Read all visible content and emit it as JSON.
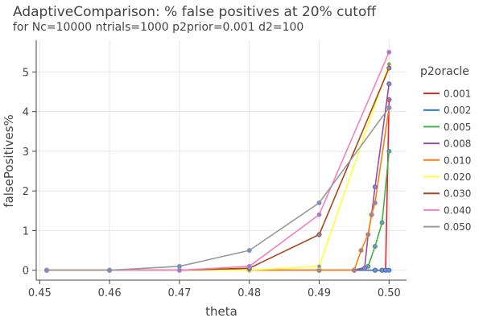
{
  "chart_data": {
    "type": "line",
    "title": "AdaptiveComparison: % false positives at 20% cutoff",
    "subtitle": "for Nc=10000 ntrials=1000 p2prior=0.001 d2=100",
    "xlabel": "theta",
    "ylabel": "falsePositives%",
    "xlim": [
      0.4495,
      0.5025
    ],
    "ylim": [
      -0.25,
      5.8
    ],
    "x_ticks": [
      0.45,
      0.46,
      0.47,
      0.48,
      0.49,
      0.5
    ],
    "x_tick_labels": [
      "0.45",
      "0.46",
      "0.47",
      "0.48",
      "0.49",
      "0.50"
    ],
    "y_ticks": [
      0,
      1,
      2,
      3,
      4,
      5
    ],
    "y_tick_labels": [
      "0",
      "1",
      "2",
      "3",
      "4",
      "5"
    ],
    "grid": true,
    "legend_title": "p2oracle",
    "legend_position": "right",
    "marker_color": "#6f8fd9",
    "series": [
      {
        "name": "0.001",
        "color": "#e3262b",
        "x": [
          0.451,
          0.46,
          0.47,
          0.48,
          0.49,
          0.495,
          0.498,
          0.499,
          0.4995,
          0.5
        ],
        "y": [
          0,
          0,
          0,
          0,
          0,
          0,
          0,
          0,
          0,
          4.3
        ]
      },
      {
        "name": "0.002",
        "color": "#2b74b0",
        "x": [
          0.451,
          0.46,
          0.47,
          0.48,
          0.49,
          0.495,
          0.498,
          0.499,
          0.4995,
          0.5
        ],
        "y": [
          0,
          0,
          0,
          0,
          0,
          0,
          0,
          0,
          0,
          0
        ]
      },
      {
        "name": "0.005",
        "color": "#45ad45",
        "x": [
          0.451,
          0.46,
          0.47,
          0.48,
          0.49,
          0.495,
          0.497,
          0.498,
          0.499,
          0.5
        ],
        "y": [
          0,
          0,
          0,
          0,
          0,
          0,
          0.1,
          0.6,
          1.2,
          3.0
        ]
      },
      {
        "name": "0.008",
        "color": "#984ea3",
        "x": [
          0.451,
          0.46,
          0.47,
          0.48,
          0.49,
          0.495,
          0.4965,
          0.497,
          0.4975,
          0.498,
          0.5
        ],
        "y": [
          0,
          0,
          0,
          0,
          0,
          0,
          0.05,
          0.9,
          1.4,
          2.1,
          4.7
        ]
      },
      {
        "name": "0.010",
        "color": "#ff7f0e",
        "x": [
          0.451,
          0.46,
          0.47,
          0.48,
          0.49,
          0.495,
          0.496,
          0.497,
          0.4975,
          0.498,
          0.5
        ],
        "y": [
          0,
          0,
          0,
          0,
          0,
          0,
          0.5,
          0.9,
          1.4,
          1.7,
          4.1
        ]
      },
      {
        "name": "0.020",
        "color": "#ffff33",
        "x": [
          0.451,
          0.46,
          0.47,
          0.48,
          0.49,
          0.5
        ],
        "y": [
          0,
          0,
          0,
          0,
          0.1,
          5.2
        ]
      },
      {
        "name": "0.030",
        "color": "#a6461a",
        "x": [
          0.451,
          0.46,
          0.47,
          0.48,
          0.49,
          0.5
        ],
        "y": [
          0,
          0,
          0,
          0.05,
          0.9,
          5.1
        ]
      },
      {
        "name": "0.040",
        "color": "#f47fc1",
        "x": [
          0.451,
          0.46,
          0.47,
          0.48,
          0.49,
          0.5
        ],
        "y": [
          0,
          0,
          0,
          0.1,
          1.4,
          5.5
        ]
      },
      {
        "name": "0.050",
        "color": "#999999",
        "x": [
          0.451,
          0.46,
          0.47,
          0.48,
          0.49,
          0.5
        ],
        "y": [
          0,
          0,
          0.1,
          0.5,
          1.7,
          4.1
        ]
      }
    ]
  }
}
